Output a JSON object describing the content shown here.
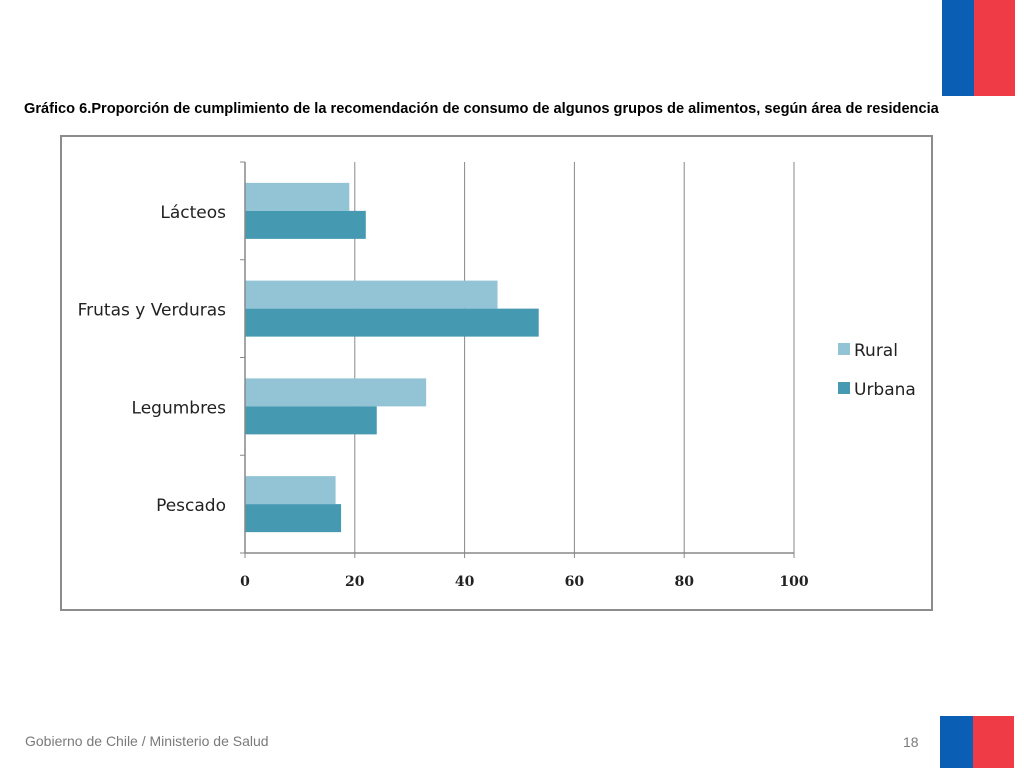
{
  "slide": {
    "title": "Gráfico 6.Proporción de cumplimiento de la recomendación de consumo de algunos grupos de alimentos, según área de residencia",
    "footer": "Gobierno de Chile / Ministerio de Salud",
    "page_number": "18"
  },
  "colors": {
    "rural": "#93c4d5",
    "urbana": "#4599b1",
    "grid": "#888888",
    "flag_blue": "#0a5fb4",
    "flag_red": "#ee3b45"
  },
  "chart_data": {
    "type": "bar",
    "orientation": "horizontal",
    "title": "",
    "xlabel": "",
    "ylabel": "",
    "categories": [
      "Lácteos",
      "Frutas y Verduras",
      "Legumbres",
      "Pescado"
    ],
    "series": [
      {
        "name": "Rural",
        "values": [
          19,
          46,
          33,
          16.5
        ]
      },
      {
        "name": "Urbana",
        "values": [
          22,
          53.5,
          24,
          17.5
        ]
      }
    ],
    "xlim": [
      0,
      100
    ],
    "xticks": [
      "0",
      "20",
      "40",
      "60",
      "80",
      "100"
    ],
    "grid": true,
    "legend": "right"
  }
}
